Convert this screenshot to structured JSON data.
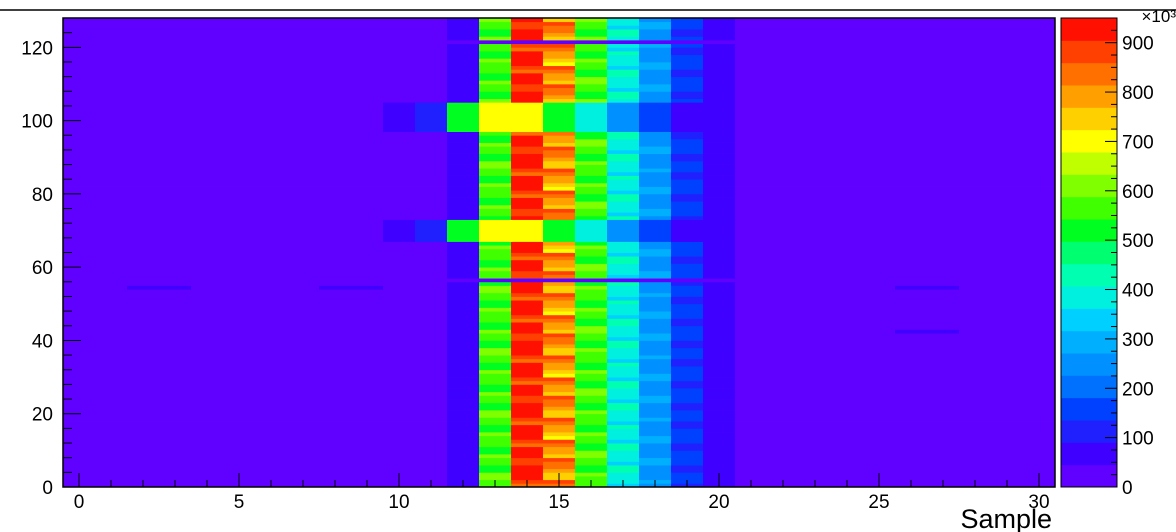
{
  "chart_data": {
    "type": "heatmap",
    "title": "",
    "xlabel": "Sample",
    "ylabel": "",
    "xlim": [
      -0.5,
      30.5
    ],
    "ylim": [
      0,
      128
    ],
    "x_ticks": [
      0,
      5,
      10,
      15,
      20,
      25,
      30
    ],
    "y_ticks": [
      0,
      20,
      40,
      60,
      80,
      100,
      120
    ],
    "colorbar": {
      "min": 0,
      "max": 950,
      "ticks": [
        0,
        100,
        200,
        300,
        400,
        500,
        600,
        700,
        800,
        900
      ],
      "exponent_label": "×10³",
      "colors": [
        "#6000ff",
        "#3f00ff",
        "#2020ff",
        "#0040ff",
        "#0070ff",
        "#0090ff",
        "#00b0ff",
        "#00d0ff",
        "#00f0e0",
        "#00ffb0",
        "#00ff70",
        "#00ff20",
        "#40ff00",
        "#80ff00",
        "#c0ff00",
        "#ffff00",
        "#ffd000",
        "#ffa000",
        "#ff7000",
        "#ff4000",
        "#ff1000"
      ]
    },
    "background_value": 0,
    "column_profile": [
      {
        "x": 11,
        "value": 20
      },
      {
        "x": 12,
        "value": 60
      },
      {
        "x": 13,
        "value": 560
      },
      {
        "x": 14,
        "value": 930
      },
      {
        "x": 15,
        "value": 800
      },
      {
        "x": 16,
        "value": 560
      },
      {
        "x": 17,
        "value": 390
      },
      {
        "x": 18,
        "value": 260
      },
      {
        "x": 19,
        "value": 140
      },
      {
        "x": 20,
        "value": 70
      },
      {
        "x": 21,
        "value": 40
      }
    ],
    "anomalous_rows": [
      {
        "rows": [
          67,
          68,
          69,
          70,
          71,
          72
        ],
        "x": [
          10,
          11,
          12,
          13,
          14,
          15,
          16,
          17,
          18,
          19,
          20,
          21
        ],
        "values": [
          60,
          110,
          520,
          720,
          680,
          500,
          380,
          270,
          150,
          80,
          50,
          20
        ]
      },
      {
        "rows": [
          97,
          98,
          99,
          100,
          101,
          102,
          103,
          104
        ],
        "x": [
          10,
          11,
          12,
          13,
          14,
          15,
          16,
          17,
          18,
          19,
          20,
          21
        ],
        "values": [
          60,
          110,
          520,
          720,
          680,
          500,
          380,
          270,
          150,
          80,
          50,
          20
        ]
      }
    ],
    "dead_rows": [
      56,
      121
    ],
    "isolated_cells": [
      {
        "x": 2,
        "y": 54,
        "value": 60
      },
      {
        "x": 3,
        "y": 54,
        "value": 60
      },
      {
        "x": 8,
        "y": 54,
        "value": 60
      },
      {
        "x": 9,
        "y": 54,
        "value": 60
      },
      {
        "x": 26,
        "y": 54,
        "value": 60
      },
      {
        "x": 27,
        "y": 54,
        "value": 60
      },
      {
        "x": 26,
        "y": 42,
        "value": 60
      },
      {
        "x": 27,
        "y": 42,
        "value": 60
      }
    ]
  }
}
